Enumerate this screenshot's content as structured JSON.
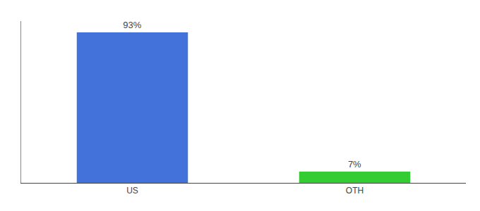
{
  "chart_data": {
    "type": "bar",
    "categories": [
      "US",
      "OTH"
    ],
    "values": [
      93,
      7
    ],
    "value_labels": [
      "93%",
      "7%"
    ],
    "colors": [
      "#4472DB",
      "#33CC33"
    ],
    "ylim": [
      0,
      100
    ],
    "grid": false,
    "data_labels": true,
    "tick_labels": "x"
  }
}
